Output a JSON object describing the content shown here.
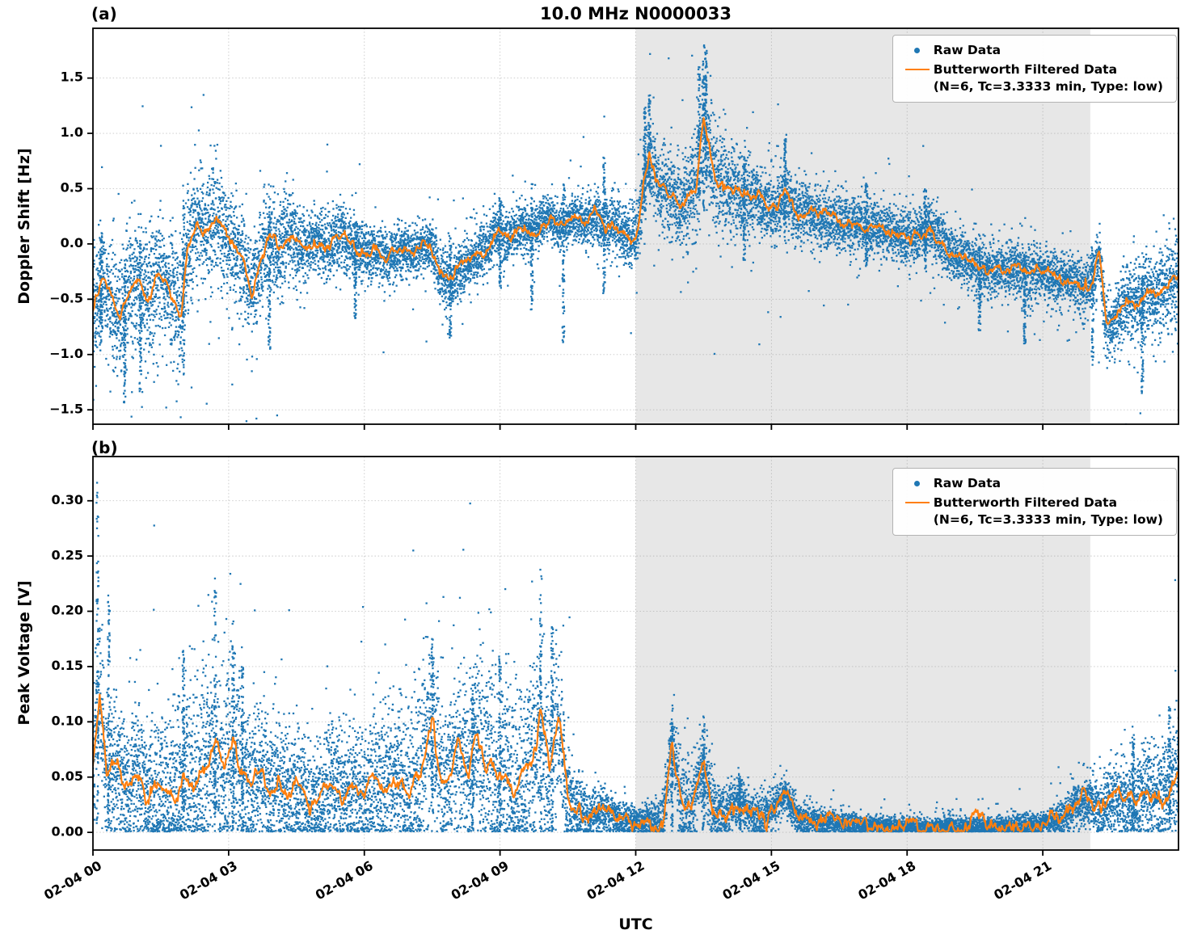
{
  "figure": {
    "title": "10.0 MHz N0000033",
    "panel_a_label": "(a)",
    "panel_b_label": "(b)",
    "xlabel": "UTC",
    "ylabel_a": "Doppler Shift [Hz]",
    "ylabel_b": "Peak Voltage [V]",
    "legend": {
      "raw_label": "Raw Data",
      "filtered_label": "Butterworth Filtered Data",
      "filtered_sub": "(N=6, Tc=3.3333 min, Type: low)"
    },
    "colors": {
      "raw": "#1f77b4",
      "filtered": "#ff7f0e",
      "shade": "#e7e7e7",
      "grid": "#999999",
      "text": "#000000"
    }
  },
  "chart_data": [
    {
      "type": "scatter",
      "panel": "a",
      "title": "10.0 MHz N0000033",
      "ylabel": "Doppler Shift [Hz]",
      "x_unit": "hours after 02-04 00:00 UTC",
      "xlim": [
        0,
        24
      ],
      "xticks": [
        0,
        3,
        6,
        9,
        12,
        15,
        18,
        21
      ],
      "xtick_labels": [
        "02-04 00",
        "02-04 03",
        "02-04 06",
        "02-04 09",
        "02-04 12",
        "02-04 15",
        "02-04 18",
        "02-04 21"
      ],
      "ylim": [
        -1.63,
        1.95
      ],
      "yticks": [
        -1.5,
        -1.0,
        -0.5,
        0.0,
        0.5,
        1.0,
        1.5
      ],
      "ytick_labels": [
        "−1.5",
        "−1.0",
        "−0.5",
        "0.0",
        "0.5",
        "1.0",
        "1.5"
      ],
      "grid": true,
      "legend_position": "upper right",
      "shade_region_hours": [
        12.0,
        22.05
      ],
      "clip_zero": false,
      "line_wiggle": 0.018,
      "series": [
        {
          "name": "Raw Data",
          "type": "scatter",
          "color": "#1f77b4",
          "model": {
            "sigma_x": [
              0,
              1,
              2,
              3,
              4,
              5,
              6,
              7,
              8,
              9,
              10,
              11,
              12,
              12.5,
              13,
              13.5,
              14,
              15,
              16,
              17,
              18,
              19,
              20,
              21,
              22,
              23,
              24
            ],
            "sigma_y": [
              0.25,
              0.3,
              0.28,
              0.25,
              0.22,
              0.15,
              0.13,
              0.12,
              0.13,
              0.12,
              0.1,
              0.12,
              0.15,
              0.2,
              0.18,
              0.25,
              0.2,
              0.15,
              0.13,
              0.12,
              0.12,
              0.12,
              0.13,
              0.12,
              0.12,
              0.18,
              0.2
            ],
            "spikes": [
              [
                0.18,
                -0.9,
                0.1
              ],
              [
                0.7,
                -1.45,
                -0.2
              ],
              [
                1.05,
                -1.35,
                0.0
              ],
              [
                2.0,
                -1.2,
                0.35
              ],
              [
                3.9,
                -0.95,
                0.3
              ],
              [
                5.8,
                -0.7,
                0.2
              ],
              [
                7.9,
                -0.85,
                0.1
              ],
              [
                9.0,
                -0.4,
                0.45
              ],
              [
                9.7,
                -0.6,
                0.55
              ],
              [
                10.4,
                -0.9,
                0.55
              ],
              [
                11.3,
                -0.45,
                0.8
              ],
              [
                12.2,
                0.3,
                1.25
              ],
              [
                12.3,
                0.5,
                1.35
              ],
              [
                13.4,
                0.4,
                1.6
              ],
              [
                13.5,
                0.3,
                1.8
              ],
              [
                13.55,
                0.5,
                1.75
              ],
              [
                14.4,
                -0.15,
                0.8
              ],
              [
                15.3,
                0.0,
                0.95
              ],
              [
                17.1,
                -0.2,
                0.55
              ],
              [
                18.4,
                -0.25,
                0.5
              ],
              [
                19.6,
                -0.8,
                0.0
              ],
              [
                20.6,
                -0.9,
                -0.1
              ],
              [
                22.1,
                -1.1,
                0.0
              ],
              [
                23.2,
                -1.35,
                -0.3
              ]
            ]
          }
        },
        {
          "name": "Butterworth Filtered Data (N=6, Tc=3.3333 min, Type: low)",
          "type": "line",
          "color": "#ff7f0e",
          "x": [
            0,
            0.2,
            0.4,
            0.6,
            0.8,
            1.0,
            1.2,
            1.4,
            1.6,
            1.8,
            1.95,
            2.1,
            2.3,
            2.5,
            2.7,
            2.9,
            3.1,
            3.3,
            3.5,
            3.7,
            3.9,
            4.1,
            4.3,
            4.5,
            4.7,
            4.9,
            5.1,
            5.3,
            5.5,
            5.7,
            5.9,
            6.1,
            6.3,
            6.5,
            6.7,
            6.9,
            7.1,
            7.3,
            7.5,
            7.7,
            7.9,
            8.1,
            8.3,
            8.5,
            8.7,
            8.9,
            9.1,
            9.3,
            9.5,
            9.7,
            9.9,
            10.1,
            10.3,
            10.5,
            10.7,
            10.9,
            11.1,
            11.3,
            11.5,
            11.7,
            11.9,
            12.05,
            12.2,
            12.3,
            12.45,
            12.6,
            12.8,
            13.0,
            13.2,
            13.35,
            13.5,
            13.6,
            13.75,
            13.9,
            14.1,
            14.3,
            14.5,
            14.7,
            14.9,
            15.1,
            15.3,
            15.5,
            15.7,
            15.9,
            16.1,
            16.3,
            16.5,
            16.7,
            16.9,
            17.1,
            17.3,
            17.5,
            17.7,
            17.9,
            18.1,
            18.3,
            18.5,
            18.7,
            18.9,
            19.1,
            19.3,
            19.5,
            19.7,
            19.9,
            20.1,
            20.3,
            20.5,
            20.7,
            20.9,
            21.1,
            21.3,
            21.5,
            21.7,
            21.9,
            22.1,
            22.25,
            22.4,
            22.55,
            22.7,
            22.9,
            23.1,
            23.3,
            23.5,
            23.7,
            23.9,
            24
          ],
          "y": [
            -0.6,
            -0.35,
            -0.5,
            -0.7,
            -0.45,
            -0.35,
            -0.5,
            -0.3,
            -0.35,
            -0.55,
            -0.6,
            0.0,
            0.2,
            0.1,
            0.25,
            0.1,
            -0.05,
            -0.15,
            -0.45,
            -0.15,
            0.05,
            -0.05,
            0.1,
            0.0,
            -0.1,
            0.05,
            -0.05,
            0.0,
            0.1,
            0.0,
            -0.05,
            -0.1,
            -0.05,
            -0.15,
            -0.1,
            -0.05,
            -0.1,
            0.0,
            -0.05,
            -0.3,
            -0.35,
            -0.25,
            -0.15,
            -0.1,
            -0.05,
            0.1,
            0.05,
            0.1,
            0.15,
            0.1,
            0.2,
            0.25,
            0.15,
            0.2,
            0.25,
            0.2,
            0.25,
            0.15,
            0.2,
            0.1,
            0.05,
            0.1,
            0.6,
            0.8,
            0.55,
            0.5,
            0.45,
            0.35,
            0.45,
            0.55,
            1.15,
            0.9,
            0.6,
            0.55,
            0.5,
            0.45,
            0.4,
            0.4,
            0.35,
            0.3,
            0.5,
            0.3,
            0.3,
            0.28,
            0.25,
            0.22,
            0.2,
            0.2,
            0.18,
            0.15,
            0.15,
            0.12,
            0.1,
            0.08,
            0.05,
            0.1,
            0.15,
            0.05,
            -0.05,
            -0.1,
            -0.15,
            -0.2,
            -0.25,
            -0.2,
            -0.25,
            -0.2,
            -0.25,
            -0.3,
            -0.25,
            -0.3,
            -0.35,
            -0.3,
            -0.35,
            -0.4,
            -0.35,
            -0.1,
            -0.7,
            -0.75,
            -0.6,
            -0.5,
            -0.55,
            -0.45,
            -0.5,
            -0.4,
            -0.35,
            -0.3
          ]
        }
      ]
    },
    {
      "type": "scatter",
      "panel": "b",
      "ylabel": "Peak Voltage [V]",
      "x_unit": "hours after 02-04 00:00 UTC",
      "xlim": [
        0,
        24
      ],
      "xticks": [
        0,
        3,
        6,
        9,
        12,
        15,
        18,
        21
      ],
      "xtick_labels": [
        "02-04 00",
        "02-04 03",
        "02-04 06",
        "02-04 09",
        "02-04 12",
        "02-04 15",
        "02-04 18",
        "02-04 21"
      ],
      "xlabel": "UTC",
      "ylim": [
        -0.016,
        0.34
      ],
      "yticks": [
        0.0,
        0.05,
        0.1,
        0.15,
        0.2,
        0.25,
        0.3
      ],
      "ytick_labels": [
        "0.00",
        "0.05",
        "0.10",
        "0.15",
        "0.20",
        "0.25",
        "0.30"
      ],
      "grid": true,
      "legend_position": "upper right",
      "shade_region_hours": [
        12.0,
        22.05
      ],
      "clip_zero": true,
      "line_wiggle": 0.0025,
      "series": [
        {
          "name": "Raw Data",
          "type": "scatter",
          "color": "#1f77b4",
          "model": {
            "sigma_x": [
              0,
              1,
              2,
              3,
              4,
              5,
              6,
              7,
              8,
              9,
              10,
              10.8,
              11.5,
              12,
              12.5,
              13,
              13.5,
              14,
              15,
              16,
              17,
              18,
              19,
              20,
              21,
              21.5,
              22,
              23,
              24
            ],
            "sigma_y": [
              0.035,
              0.03,
              0.045,
              0.045,
              0.028,
              0.028,
              0.032,
              0.038,
              0.038,
              0.042,
              0.045,
              0.012,
              0.008,
              0.006,
              0.01,
              0.02,
              0.018,
              0.012,
              0.01,
              0.006,
              0.004,
              0.004,
              0.004,
              0.004,
              0.005,
              0.008,
              0.012,
              0.02,
              0.025
            ],
            "spikes": [
              [
                0.1,
                0.001,
                0.32
              ],
              [
                0.35,
                0.001,
                0.22
              ],
              [
                2.0,
                0.001,
                0.17
              ],
              [
                2.7,
                0.001,
                0.22
              ],
              [
                3.1,
                0.001,
                0.17
              ],
              [
                3.3,
                0.001,
                0.15
              ],
              [
                7.5,
                0.001,
                0.175
              ],
              [
                8.4,
                0.001,
                0.13
              ],
              [
                9.0,
                0.001,
                0.16
              ],
              [
                9.9,
                0.001,
                0.24
              ],
              [
                10.15,
                0.001,
                0.19
              ],
              [
                12.8,
                0.001,
                0.1
              ],
              [
                13.5,
                0.001,
                0.105
              ],
              [
                14.3,
                0.001,
                0.055
              ],
              [
                23.0,
                0.001,
                0.09
              ],
              [
                23.8,
                0.001,
                0.115
              ]
            ]
          }
        },
        {
          "name": "Butterworth Filtered Data (N=6, Tc=3.3333 min, Type: low)",
          "type": "line",
          "color": "#ff7f0e",
          "x": [
            0,
            0.15,
            0.3,
            0.5,
            0.7,
            1,
            1.2,
            1.5,
            1.8,
            2,
            2.2,
            2.5,
            2.7,
            2.9,
            3.1,
            3.3,
            3.5,
            3.7,
            3.9,
            4.1,
            4.3,
            4.5,
            4.8,
            5,
            5.2,
            5.5,
            5.8,
            6,
            6.2,
            6.5,
            6.8,
            7,
            7.2,
            7.5,
            7.7,
            7.9,
            8.1,
            8.3,
            8.5,
            8.7,
            8.9,
            9.1,
            9.3,
            9.5,
            9.7,
            9.9,
            10.1,
            10.3,
            10.5,
            10.7,
            11,
            11.3,
            11.6,
            12,
            12.3,
            12.6,
            12.8,
            13,
            13.2,
            13.5,
            13.7,
            14,
            14.3,
            14.6,
            15,
            15.3,
            15.6,
            16,
            16.5,
            17,
            17.5,
            18,
            18.5,
            19,
            19.5,
            20,
            20.5,
            21,
            21.3,
            21.6,
            22,
            22.3,
            22.6,
            23,
            23.3,
            23.6,
            24
          ],
          "y": [
            0.06,
            0.13,
            0.05,
            0.06,
            0.045,
            0.05,
            0.035,
            0.04,
            0.03,
            0.055,
            0.045,
            0.06,
            0.08,
            0.055,
            0.09,
            0.05,
            0.04,
            0.06,
            0.035,
            0.05,
            0.03,
            0.04,
            0.025,
            0.03,
            0.05,
            0.035,
            0.045,
            0.03,
            0.05,
            0.04,
            0.05,
            0.035,
            0.045,
            0.105,
            0.04,
            0.05,
            0.09,
            0.055,
            0.095,
            0.06,
            0.045,
            0.06,
            0.04,
            0.05,
            0.06,
            0.11,
            0.05,
            0.105,
            0.03,
            0.02,
            0.015,
            0.02,
            0.012,
            0.01,
            0.012,
            0.01,
            0.085,
            0.025,
            0.02,
            0.06,
            0.02,
            0.018,
            0.03,
            0.015,
            0.02,
            0.035,
            0.012,
            0.01,
            0.008,
            0.007,
            0.006,
            0.006,
            0.005,
            0.006,
            0.005,
            0.006,
            0.006,
            0.008,
            0.012,
            0.02,
            0.03,
            0.02,
            0.035,
            0.025,
            0.04,
            0.03,
            0.06
          ]
        }
      ]
    }
  ]
}
